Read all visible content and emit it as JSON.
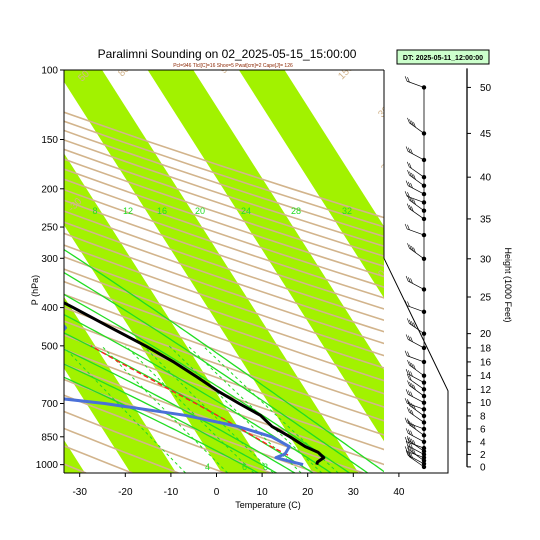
{
  "title": "Paralimni Sounding on 02_2025-05-15_15:00:00",
  "subtitle": "Pcl=946 Tlcl[C]=16 Shox=5 Pwat[cm]=2 Cape[J]= 126",
  "badge": "DT: 2025-05-11_12:00:00",
  "colors": {
    "band": "#a2f200",
    "dry_adiabat": "#d2b48c",
    "moist_adiabat": "#22dd22",
    "temperature": "#000000",
    "dewpoint": "#4a70d8",
    "parcel": "#ff2020"
  },
  "chart_data": {
    "type": "line",
    "xlabel": "Temperature (C)",
    "ylabel": "P (hPa)",
    "y2label": "Height (1000 Feet)",
    "y_scale": "log",
    "x_ticks": [
      "-30",
      "-20",
      "-10",
      "0",
      "10",
      "20",
      "30",
      "40"
    ],
    "y_ticks": [
      "100",
      "150",
      "200",
      "250",
      "300",
      "400",
      "500",
      "700",
      "850",
      "1000"
    ],
    "height_ticks": [
      "0",
      "2",
      "4",
      "6",
      "8",
      "10",
      "12",
      "14",
      "16",
      "18",
      "20",
      "25",
      "30",
      "35",
      "40",
      "45",
      "50"
    ],
    "moist_labels": [
      "8",
      "12",
      "16",
      "20",
      "24",
      "28",
      "32"
    ],
    "mixing_labels": [
      "4",
      "6",
      "8"
    ],
    "dry_labels": [
      "-30",
      "0",
      "10",
      "30",
      "30",
      "50",
      "80",
      "90",
      "150"
    ],
    "temperature": {
      "p": [
        1000,
        985,
        960,
        930,
        900,
        850,
        800,
        750,
        700,
        650,
        600,
        550,
        500,
        450,
        400,
        350,
        300,
        250,
        200,
        175,
        150,
        130,
        115,
        100
      ],
      "t": [
        22,
        22.5,
        24.5,
        24,
        22,
        20,
        17.5,
        16.5,
        13.5,
        10.5,
        8,
        5,
        1,
        -4,
        -9.5,
        -16,
        -23,
        -32.5,
        -45,
        -51,
        -56,
        -57.5,
        -55,
        -52
      ]
    },
    "dewpoint": {
      "p": [
        1000,
        985,
        960,
        940,
        900,
        850,
        800,
        750,
        700,
        650,
        620,
        600,
        550,
        500,
        450,
        420,
        400,
        350,
        300,
        250,
        220,
        200,
        175,
        150,
        130,
        115,
        100
      ],
      "td": [
        19,
        17,
        14,
        16.5,
        18.5,
        16,
        10,
        0,
        -16,
        -39,
        -50,
        -46,
        -34,
        -20,
        -14,
        -14.5,
        -19,
        -26,
        -36,
        -49,
        -57,
        -63,
        -70,
        -74,
        -77,
        -73,
        -66
      ]
    },
    "parcel": {
      "p": [
        946,
        900,
        850,
        800,
        750,
        700,
        650,
        600,
        550,
        500
      ],
      "t": [
        17,
        14.5,
        12.2,
        9.8,
        7,
        4,
        0.5,
        -3,
        -7,
        -11
      ]
    },
    "wind_heights_kft": [
      0,
      0.5,
      1,
      1.5,
      2,
      2.5,
      3,
      4,
      5,
      6,
      7,
      8,
      9,
      10,
      11,
      12,
      13,
      14,
      16,
      18,
      20,
      23,
      26,
      30,
      33,
      35,
      36,
      37,
      38,
      39,
      40,
      42,
      45,
      50
    ]
  }
}
